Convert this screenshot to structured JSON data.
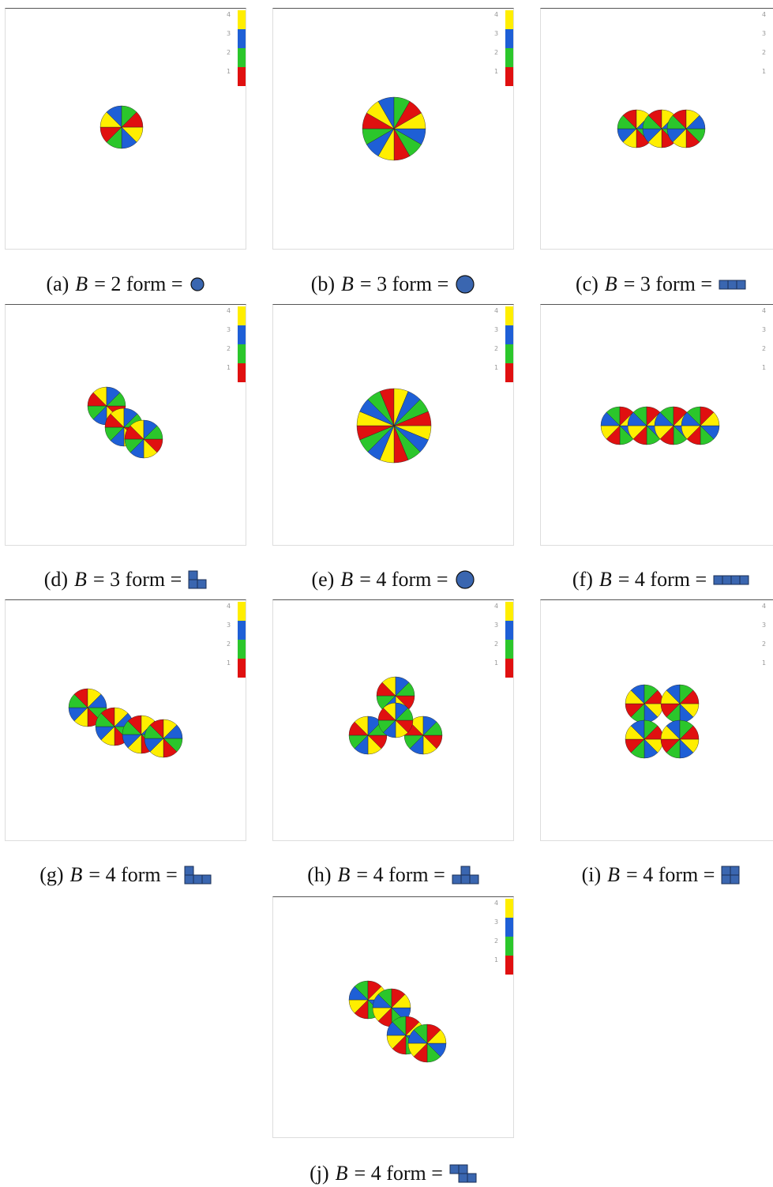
{
  "colorbar_labels": [
    "4",
    "3",
    "2",
    "1"
  ],
  "panels": [
    {
      "label": "(a)",
      "symbol": "B",
      "rest": "= 2 form ="
    },
    {
      "label": "(b)",
      "symbol": "B",
      "rest": "= 3 form ="
    },
    {
      "label": "(c)",
      "symbol": "B",
      "rest": "= 3 form ="
    },
    {
      "label": "(d)",
      "symbol": "B",
      "rest": "= 3 form ="
    },
    {
      "label": "(e)",
      "symbol": "B",
      "rest": "= 4 form ="
    },
    {
      "label": "(f)",
      "symbol": "B",
      "rest": "= 4 form ="
    },
    {
      "label": "(g)",
      "symbol": "B",
      "rest": "= 4 form ="
    },
    {
      "label": "(h)",
      "symbol": "B",
      "rest": "= 4 form ="
    },
    {
      "label": "(i)",
      "symbol": "B",
      "rest": "= 4 form ="
    },
    {
      "label": "(j)",
      "symbol": "B",
      "rest": "= 4 form ="
    }
  ]
}
